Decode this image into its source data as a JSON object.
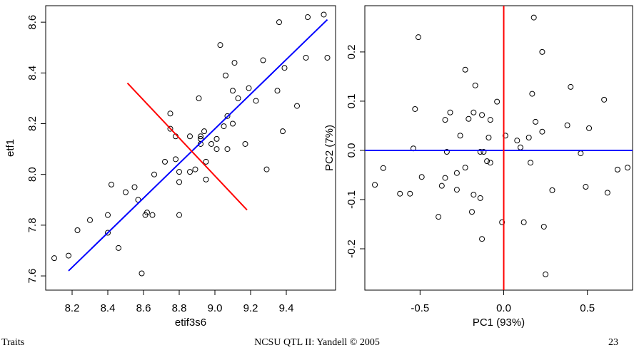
{
  "chart_data": [
    {
      "type": "scatter",
      "xlabel": "etif3s6",
      "ylabel": "etf1",
      "x": [
        8.1,
        8.18,
        8.23,
        8.3,
        8.4,
        8.4,
        8.42,
        8.46,
        8.5,
        8.55,
        8.57,
        8.59,
        8.61,
        8.62,
        8.65,
        8.66,
        8.72,
        8.75,
        8.75,
        8.78,
        8.78,
        8.8,
        8.8,
        8.8,
        8.86,
        8.86,
        8.89,
        8.91,
        8.92,
        8.92,
        8.92,
        8.94,
        8.95,
        8.95,
        8.98,
        9.01,
        9.01,
        9.03,
        9.05,
        9.06,
        9.07,
        9.07,
        9.1,
        9.1,
        9.11,
        9.13,
        9.17,
        9.19,
        9.23,
        9.27,
        9.29,
        9.35,
        9.36,
        9.38,
        9.39,
        9.46,
        9.51,
        9.52,
        9.61,
        9.63
      ],
      "values": [
        7.67,
        7.68,
        7.78,
        7.82,
        7.77,
        7.84,
        7.96,
        7.71,
        7.93,
        7.95,
        7.9,
        7.61,
        7.84,
        7.85,
        7.84,
        8.0,
        8.05,
        8.24,
        8.18,
        8.15,
        8.06,
        7.84,
        7.97,
        8.01,
        8.15,
        8.01,
        8.02,
        8.3,
        8.15,
        8.14,
        8.12,
        8.17,
        8.05,
        7.98,
        8.12,
        8.1,
        8.14,
        8.51,
        8.19,
        8.39,
        8.23,
        8.1,
        8.33,
        8.2,
        8.44,
        8.3,
        8.12,
        8.34,
        8.29,
        8.45,
        8.02,
        8.33,
        8.6,
        8.17,
        8.42,
        8.27,
        8.46,
        8.62,
        8.63,
        8.46
      ],
      "lines": [
        {
          "color": "#0000ff",
          "x": [
            8.18,
            9.63
          ],
          "y": [
            7.62,
            8.61
          ]
        },
        {
          "color": "#ff0000",
          "x": [
            8.51,
            9.18
          ],
          "y": [
            8.36,
            7.86
          ]
        }
      ],
      "xlim": [
        8.052,
        9.676
      ],
      "ylim": [
        7.544,
        8.665
      ],
      "xticks": [
        8.2,
        8.4,
        8.6,
        8.8,
        {
          "value": 9,
          "label": "9.0"
        },
        9.2,
        9.4
      ],
      "yticks": [
        7.6,
        7.8,
        {
          "value": 8,
          "label": "8.0"
        },
        8.2,
        8.4,
        8.6
      ]
    },
    {
      "type": "scatter",
      "xlabel": "PC1 (93%)",
      "ylabel": "PC2 (7%)",
      "x": [
        -0.77,
        -0.72,
        -0.62,
        -0.56,
        -0.54,
        -0.53,
        -0.51,
        -0.49,
        -0.39,
        -0.37,
        -0.35,
        -0.35,
        -0.34,
        -0.32,
        -0.28,
        -0.23,
        -0.28,
        -0.26,
        -0.23,
        -0.21,
        -0.19,
        -0.18,
        -0.18,
        -0.17,
        -0.14,
        -0.14,
        -0.13,
        -0.13,
        -0.12,
        -0.1,
        -0.09,
        -0.08,
        -0.08,
        -0.04,
        -0.01,
        0.01,
        0.08,
        0.1,
        0.12,
        0.16,
        0.15,
        0.17,
        0.18,
        0.19,
        0.23,
        0.23,
        0.24,
        0.25,
        0.29,
        0.38,
        0.4,
        0.46,
        0.49,
        0.51,
        0.6,
        0.62,
        0.68,
        0.74
      ],
      "values": [
        -0.07,
        -0.036,
        -0.088,
        -0.088,
        0.004,
        0.084,
        0.23,
        -0.054,
        -0.135,
        -0.072,
        -0.056,
        0.062,
        -0.003,
        0.077,
        -0.08,
        0.164,
        -0.046,
        0.03,
        -0.035,
        0.064,
        -0.125,
        -0.09,
        0.077,
        0.132,
        -0.097,
        -0.003,
        0.072,
        -0.18,
        -0.003,
        -0.022,
        0.026,
        -0.025,
        0.062,
        0.099,
        -0.146,
        0.03,
        0.02,
        0.006,
        -0.146,
        -0.025,
        0.026,
        0.115,
        0.27,
        0.058,
        0.038,
        0.2,
        -0.155,
        -0.252,
        -0.081,
        0.051,
        0.129,
        -0.006,
        -0.074,
        0.045,
        0.103,
        -0.086,
        -0.039,
        -0.035
      ],
      "lines": [
        {
          "color": "#0000ff",
          "x": [
            -0.83,
            0.77
          ],
          "y": [
            0,
            0
          ]
        },
        {
          "color": "#ff0000",
          "x": [
            0,
            0
          ],
          "y": [
            -0.284,
            0.294
          ]
        }
      ],
      "xlim": [
        -0.83,
        0.77
      ],
      "ylim": [
        -0.284,
        0.294
      ],
      "xticks": [
        -0.5,
        {
          "value": 0,
          "label": "0.0"
        },
        0.5
      ],
      "yticks": [
        -0.2,
        -0.1,
        {
          "value": 0,
          "label": "0.0"
        },
        0.1,
        0.2
      ]
    }
  ],
  "footer": {
    "left": "Traits",
    "center": "NCSU QTL II: Yandell © 2005",
    "right": "23"
  }
}
